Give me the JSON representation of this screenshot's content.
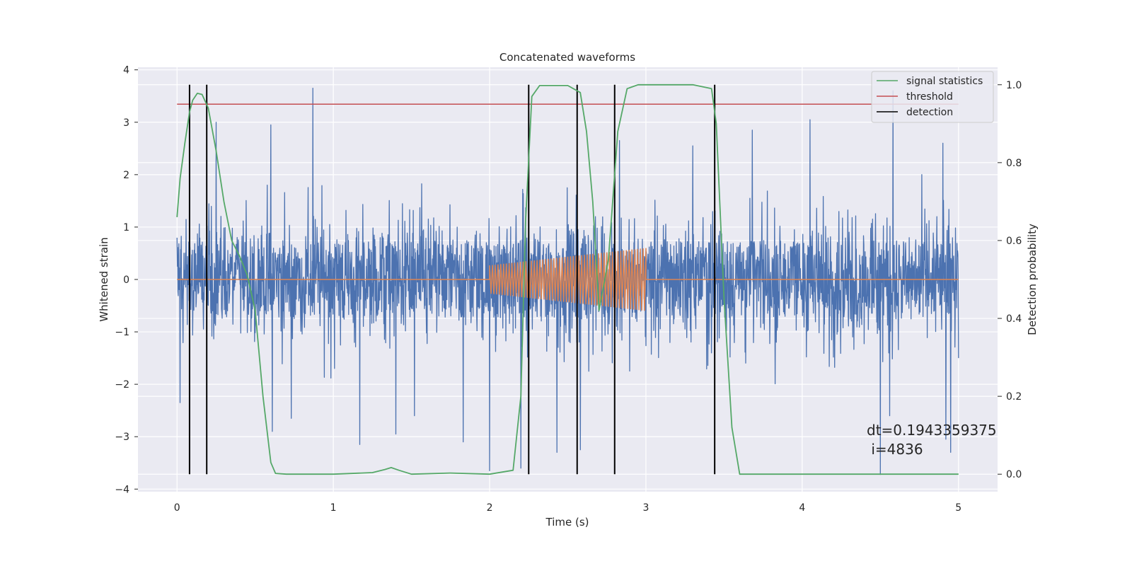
{
  "chart_data": {
    "type": "line",
    "title": "Concatenated waveforms",
    "xlabel": "Time (s)",
    "ylabel_left": "Whitened strain",
    "ylabel_right": "Detection probability",
    "xlim": [
      -0.25,
      5.25
    ],
    "ylim_left": [
      -4.05,
      4.05
    ],
    "ylim_right": [
      -0.045,
      1.045
    ],
    "x_ticks": [
      0,
      1,
      2,
      3,
      4,
      5
    ],
    "y_ticks_left": [
      -4,
      -3,
      -2,
      -1,
      0,
      1,
      2,
      3,
      4
    ],
    "y_ticks_right": [
      0.0,
      0.2,
      0.4,
      0.6,
      0.8,
      1.0
    ],
    "grid": true,
    "legend_position": "top-right",
    "series": [
      {
        "kind": "noise",
        "axis": "left",
        "color": "#4c72b0",
        "x_range": [
          0,
          5
        ],
        "core_amplitude": 0.72,
        "spikes": [
          [
            0.87,
            3.65
          ],
          [
            4.5,
            -3.72
          ],
          [
            4.58,
            3.6
          ],
          [
            2.0,
            -3.65
          ],
          [
            2.2,
            -3.6
          ],
          [
            2.43,
            -3.3
          ],
          [
            1.17,
            -3.15
          ],
          [
            1.83,
            -3.1
          ],
          [
            4.95,
            -3.3
          ],
          [
            4.92,
            -3.05
          ],
          [
            0.25,
            3.0
          ],
          [
            0.61,
            -2.9
          ],
          [
            0.73,
            -2.65
          ],
          [
            3.68,
            2.85
          ],
          [
            4.05,
            3.05
          ],
          [
            0.6,
            2.95
          ],
          [
            1.4,
            -2.95
          ],
          [
            2.58,
            -3.25
          ],
          [
            4.56,
            -2.6
          ],
          [
            1.52,
            -2.6
          ],
          [
            3.3,
            2.55
          ],
          [
            2.83,
            2.65
          ],
          [
            4.9,
            2.6
          ],
          [
            0.02,
            -2.35
          ]
        ]
      },
      {
        "kind": "chirp",
        "axis": "left",
        "color": "#dd8452",
        "x_range": [
          0,
          5
        ],
        "chirp_start": 2.0,
        "chirp_end": 3.0,
        "amplitude_start": 0.27,
        "amplitude_end": 0.6
      },
      {
        "name": "signal statistics",
        "axis": "right",
        "color": "#55a868",
        "x": [
          0.0,
          0.02,
          0.05,
          0.08,
          0.1,
          0.13,
          0.16,
          0.2,
          0.25,
          0.3,
          0.35,
          0.4,
          0.45,
          0.5,
          0.55,
          0.6,
          0.63,
          0.7,
          1.0,
          1.25,
          1.33,
          1.37,
          1.42,
          1.5,
          1.75,
          2.0,
          2.15,
          2.2,
          2.23,
          2.27,
          2.32,
          2.5,
          2.58,
          2.62,
          2.66,
          2.7,
          2.76,
          2.82,
          2.88,
          2.95,
          3.3,
          3.42,
          3.45,
          3.5,
          3.55,
          3.6,
          4.0,
          5.0
        ],
        "y": [
          0.66,
          0.76,
          0.85,
          0.93,
          0.96,
          0.978,
          0.975,
          0.94,
          0.83,
          0.7,
          0.6,
          0.56,
          0.51,
          0.42,
          0.2,
          0.03,
          0.002,
          0.0,
          0.0,
          0.004,
          0.012,
          0.017,
          0.01,
          0.0,
          0.003,
          0.0,
          0.01,
          0.2,
          0.65,
          0.97,
          0.998,
          0.998,
          0.98,
          0.88,
          0.7,
          0.42,
          0.55,
          0.88,
          0.99,
          1.0,
          1.0,
          0.99,
          0.9,
          0.45,
          0.12,
          0.0,
          0.0,
          0.0
        ]
      },
      {
        "name": "threshold",
        "axis": "right",
        "color": "#c44e52",
        "x": [
          0,
          5
        ],
        "y": [
          0.95,
          0.95
        ]
      },
      {
        "name": "detection",
        "axis": "right",
        "color": "#000000",
        "x": [
          0.08,
          0.19,
          2.25,
          2.56,
          2.8,
          3.44
        ],
        "y_range": [
          0.0,
          1.0
        ]
      }
    ],
    "annotation": [
      "dt=0.1943359375",
      " i=4836"
    ]
  }
}
